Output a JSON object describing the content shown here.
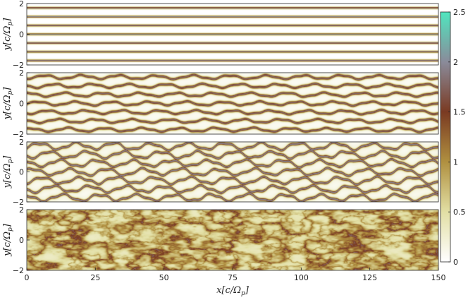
{
  "chart_data": {
    "type": "heatmap",
    "panels": [
      {
        "name": "panel-1",
        "ylabel": "y[c/Ω_p]",
        "yticks": [
          "2",
          "0",
          "-2"
        ],
        "ylim": [
          -2,
          2
        ],
        "state": "straight filaments",
        "filaments": 7,
        "amplitude": 0.0,
        "ripple": 0.0,
        "noise": 0.0,
        "baseline": 0.0
      },
      {
        "name": "panel-2",
        "ylabel": "y[c/Ω_p]",
        "yticks": [
          "2",
          "0",
          "-2"
        ],
        "ylim": [
          -2,
          2
        ],
        "state": "kinked filaments",
        "filaments": 7,
        "amplitude": 0.11,
        "ripple": 0.03,
        "noise": 0.02,
        "baseline": 0.12
      },
      {
        "name": "panel-3",
        "ylabel": "y[c/Ω_p]",
        "yticks": [
          "2",
          "0",
          "-2"
        ],
        "ylim": [
          -2,
          2
        ],
        "state": "breaking filaments",
        "filaments": 7,
        "amplitude": 0.2,
        "ripple": 0.06,
        "noise": 0.05,
        "baseline": 0.3
      },
      {
        "name": "panel-4",
        "ylabel": "y[c/Ω_p]",
        "yticks": [
          "2",
          "0",
          "-2"
        ],
        "ylim": [
          -2,
          2
        ],
        "state": "turbulent",
        "filaments": 0,
        "amplitude": 0,
        "ripple": 0,
        "noise": 0.5,
        "baseline": 0.3
      }
    ],
    "x": {
      "label": "x[c/Ω_p]",
      "lim": [
        0,
        150
      ],
      "ticks": [
        0,
        25,
        50,
        75,
        100,
        125,
        150
      ]
    },
    "colorbar": {
      "lim": [
        0,
        2.5
      ],
      "ticks": [
        0,
        0.5,
        1,
        1.5,
        2,
        2.5
      ],
      "colors": [
        "#ffffff",
        "#e2dfa4",
        "#b09040",
        "#7a3a22",
        "#8a8b9a",
        "#50e6bf"
      ]
    },
    "grid": false,
    "legend": "none"
  }
}
